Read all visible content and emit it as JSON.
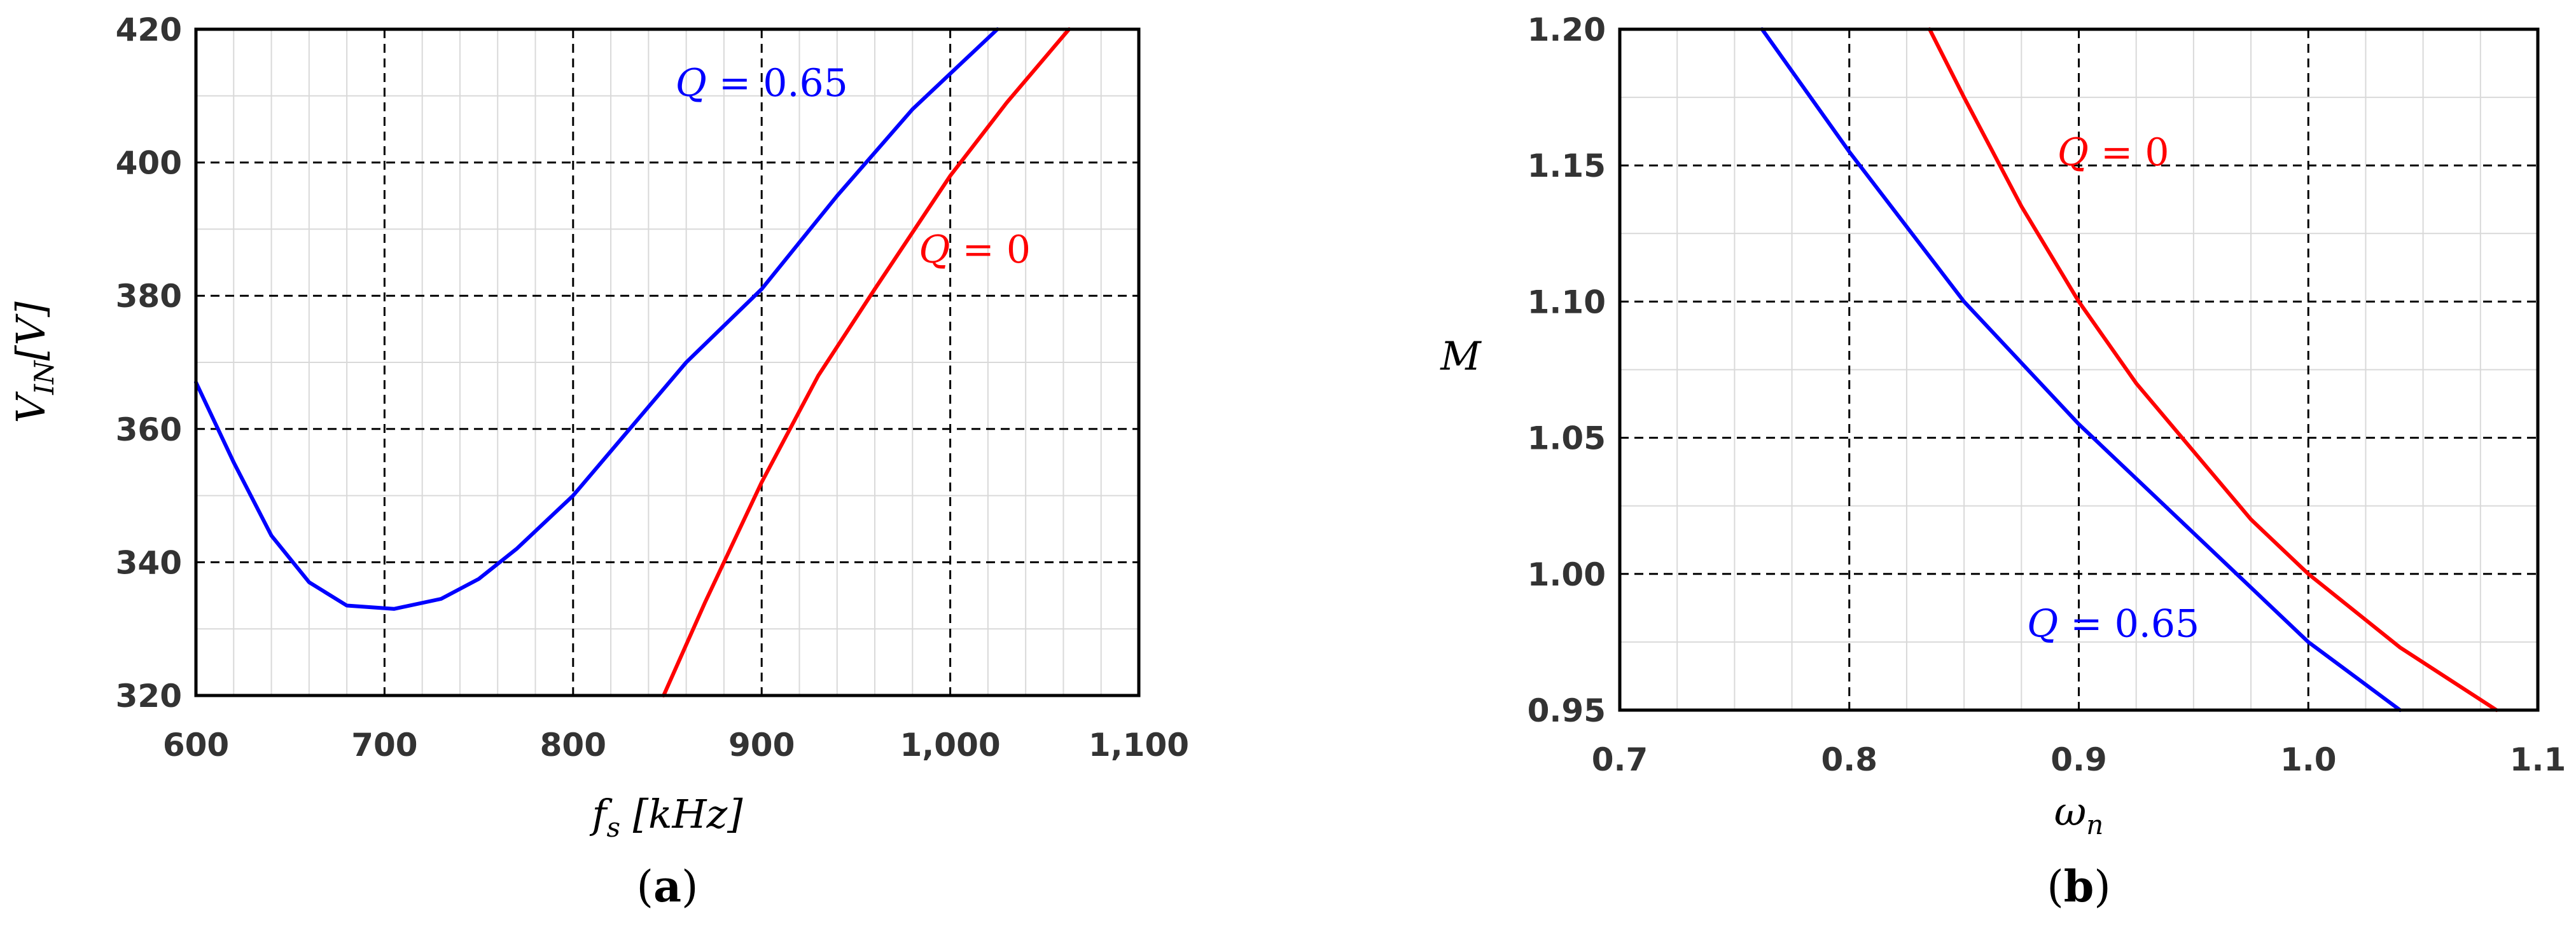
{
  "chart_data": [
    {
      "type": "line",
      "panel_label": "a",
      "xlabel": {
        "main": "f",
        "sub": "s",
        "rest": " [kHz]"
      },
      "ylabel": {
        "main": "V",
        "sub": "IN",
        "rest": "[V]"
      },
      "xlim": [
        600,
        1100
      ],
      "ylim": [
        320,
        420
      ],
      "xticks": [
        600,
        700,
        800,
        900,
        1000,
        1100
      ],
      "xtick_labels": [
        "600",
        "700",
        "800",
        "900",
        "1,000",
        "1,100"
      ],
      "yticks": [
        320,
        340,
        360,
        380,
        400,
        420
      ],
      "ytick_labels": [
        "320",
        "340",
        "360",
        "380",
        "400",
        "420"
      ],
      "grid": true,
      "series": [
        {
          "name": "Q = 0.65",
          "color": "#0000ff",
          "x": [
            600,
            620,
            640,
            660,
            680,
            705,
            730,
            750,
            770,
            800,
            830,
            860,
            900,
            940,
            980,
            1025
          ],
          "y": [
            367,
            355,
            344,
            337,
            333.5,
            333,
            334.5,
            337.5,
            342,
            350,
            360,
            370,
            381,
            395,
            408,
            420
          ]
        },
        {
          "name": "Q = 0",
          "color": "#ff0000",
          "x": [
            848,
            870,
            900,
            930,
            960,
            1000,
            1030,
            1063
          ],
          "y": [
            320,
            334,
            352,
            368,
            381,
            398,
            409,
            420
          ]
        }
      ],
      "annotations": [
        {
          "series": 0,
          "label": "Q",
          "text": " = 0.65",
          "x": 900,
          "y": 410,
          "color": "#0000ff"
        },
        {
          "series": 1,
          "label": "Q",
          "text": " = 0",
          "x": 1013,
          "y": 385,
          "color": "#ff0000"
        }
      ]
    },
    {
      "type": "line",
      "panel_label": "b",
      "xlabel": {
        "main": "ω",
        "sub": "n",
        "rest": ""
      },
      "ylabel": {
        "main": "M",
        "sub": "",
        "rest": ""
      },
      "xlim": [
        0.7,
        1.1
      ],
      "ylim": [
        0.95,
        1.2
      ],
      "xticks": [
        0.7,
        0.8,
        0.9,
        1.0,
        1.1
      ],
      "xtick_labels": [
        "0.7",
        "0.8",
        "0.9",
        "1.0",
        "1.1"
      ],
      "yticks": [
        0.95,
        1.0,
        1.05,
        1.1,
        1.15,
        1.2
      ],
      "ytick_labels": [
        "0.95",
        "1.00",
        "1.05",
        "1.10",
        "1.15",
        "1.20"
      ],
      "grid": true,
      "series": [
        {
          "name": "Q = 0.65",
          "color": "#0000ff",
          "x": [
            0.762,
            0.8,
            0.85,
            0.9,
            0.95,
            1.0,
            1.04
          ],
          "y": [
            1.2,
            1.155,
            1.1,
            1.055,
            1.015,
            0.975,
            0.95
          ]
        },
        {
          "name": "Q = 0",
          "color": "#ff0000",
          "x": [
            0.835,
            0.85,
            0.875,
            0.9,
            0.925,
            0.95,
            0.975,
            1.0,
            1.04,
            1.082
          ],
          "y": [
            1.2,
            1.175,
            1.135,
            1.1,
            1.07,
            1.045,
            1.02,
            1.0,
            0.973,
            0.95
          ]
        }
      ],
      "annotations": [
        {
          "series": 1,
          "label": "Q",
          "text": " = 0",
          "x": 0.915,
          "y": 1.15,
          "color": "#ff0000"
        },
        {
          "series": 0,
          "label": "Q",
          "text": " = 0.65",
          "x": 0.915,
          "y": 0.977,
          "color": "#0000ff"
        }
      ]
    }
  ]
}
